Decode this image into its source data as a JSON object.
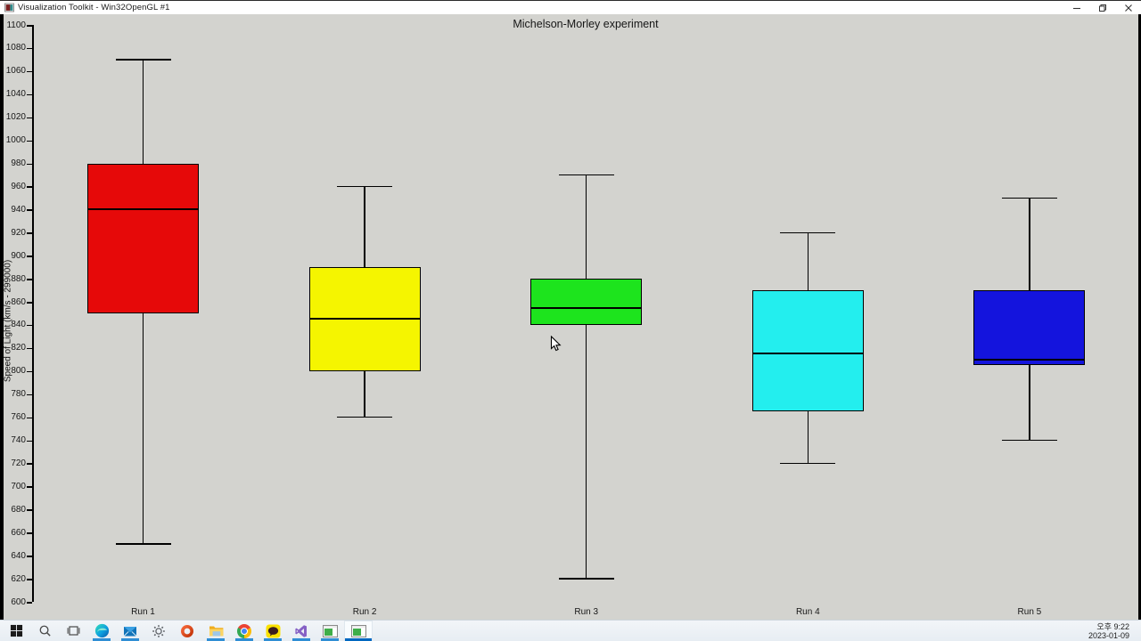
{
  "window": {
    "title": "Visualization Toolkit - Win32OpenGL #1",
    "controls": [
      {
        "id": "minimize",
        "name": "minimize-button"
      },
      {
        "id": "restore",
        "name": "restore-button"
      },
      {
        "id": "close",
        "name": "close-button"
      }
    ]
  },
  "chart_data": {
    "type": "box",
    "title": "Michelson-Morley experiment",
    "ylabel": "Speed of Light (km/s - 299000)",
    "ylim": [
      600,
      1100
    ],
    "ytick_step": 20,
    "grid": false,
    "legend": "none",
    "categories": [
      "Run 1",
      "Run 2",
      "Run 3",
      "Run 4",
      "Run 5"
    ],
    "series": [
      {
        "name": "Run 1",
        "color": "#e60909",
        "min": 650,
        "q1": 850,
        "median": 940,
        "q3": 980,
        "max": 1070
      },
      {
        "name": "Run 2",
        "color": "#f5f500",
        "min": 760,
        "q1": 800,
        "median": 845,
        "q3": 890,
        "max": 960
      },
      {
        "name": "Run 3",
        "color": "#1de41d",
        "min": 620,
        "q1": 840,
        "median": 855,
        "q3": 880,
        "max": 970
      },
      {
        "name": "Run 4",
        "color": "#23eeee",
        "min": 720,
        "q1": 765,
        "median": 815,
        "q3": 870,
        "max": 920
      },
      {
        "name": "Run 5",
        "color": "#1414dd",
        "min": 740,
        "q1": 805,
        "median": 810,
        "q3": 870,
        "max": 950
      }
    ]
  },
  "taskbar": {
    "icons": [
      {
        "id": "start",
        "name": "start-button",
        "running": false,
        "active": false
      },
      {
        "id": "search",
        "name": "search-button",
        "running": false,
        "active": false
      },
      {
        "id": "task-view",
        "name": "task-view-button",
        "running": false,
        "active": false
      },
      {
        "id": "edge",
        "name": "edge-browser-icon",
        "running": true,
        "active": false
      },
      {
        "id": "mail",
        "name": "mail-app-icon",
        "running": true,
        "active": false
      },
      {
        "id": "settings",
        "name": "settings-gear-icon",
        "running": false,
        "active": false
      },
      {
        "id": "office",
        "name": "office-app-icon",
        "running": false,
        "active": false
      },
      {
        "id": "file-explorer",
        "name": "file-explorer-icon",
        "running": true,
        "active": false
      },
      {
        "id": "chrome",
        "name": "chrome-browser-icon",
        "running": true,
        "active": false
      },
      {
        "id": "kakaotalk",
        "name": "kakaotalk-icon",
        "running": true,
        "active": false
      },
      {
        "id": "visual-studio",
        "name": "visual-studio-icon",
        "running": true,
        "active": false
      },
      {
        "id": "vtk-window-1",
        "name": "vtk-opengl-window-1-button",
        "running": true,
        "active": false
      },
      {
        "id": "vtk-window-2",
        "name": "vtk-opengl-window-2-button",
        "running": true,
        "active": true
      }
    ],
    "clock": {
      "time": "오후 9:22",
      "date": "2023-01-09"
    }
  },
  "colors": {
    "chart_bg": "#d3d3cf",
    "accent_underline": "#0067c0",
    "box_border": "#000000"
  }
}
